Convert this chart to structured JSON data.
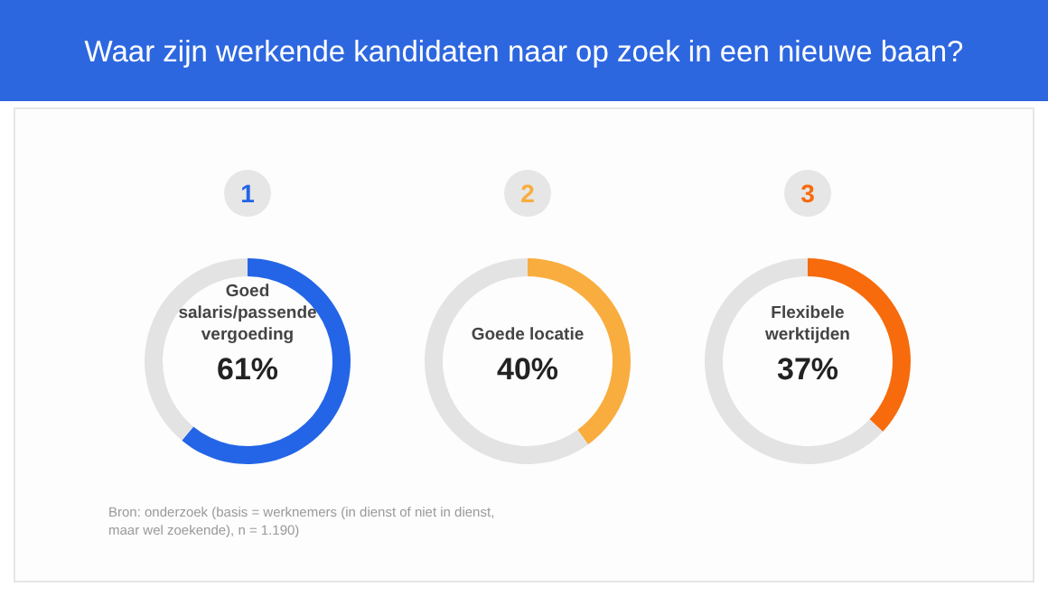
{
  "chart_data": [
    {
      "type": "donut",
      "title": "Waar zijn werkende kandidaten naar op zoek in een nieuwe baan?",
      "annotations": [
        "1",
        "Bron: onderzoek (basis = werknemers (in dienst of niet in dienst, maar wel zoekende), n = 1.190)"
      ],
      "categories": [
        "Goed salaris/passende vergoeding",
        null
      ],
      "values": [
        61,
        39
      ],
      "colors": [
        "#2365e6",
        "#e3e3e3"
      ],
      "value_labels": [
        "61%",
        null
      ]
    },
    {
      "type": "donut",
      "annotations": [
        "2"
      ],
      "categories": [
        "Goede locatie",
        null
      ],
      "values": [
        40,
        60
      ],
      "colors": [
        "#f9ad3f",
        "#e3e3e3"
      ],
      "value_labels": [
        "40%",
        null
      ]
    },
    {
      "type": "donut",
      "annotations": [
        "3"
      ],
      "categories": [
        "Flexibele werktijden",
        null
      ],
      "values": [
        37,
        63
      ],
      "colors": [
        "#f76b0c",
        "#e3e3e3"
      ],
      "value_labels": [
        "37%",
        null
      ]
    }
  ]
}
